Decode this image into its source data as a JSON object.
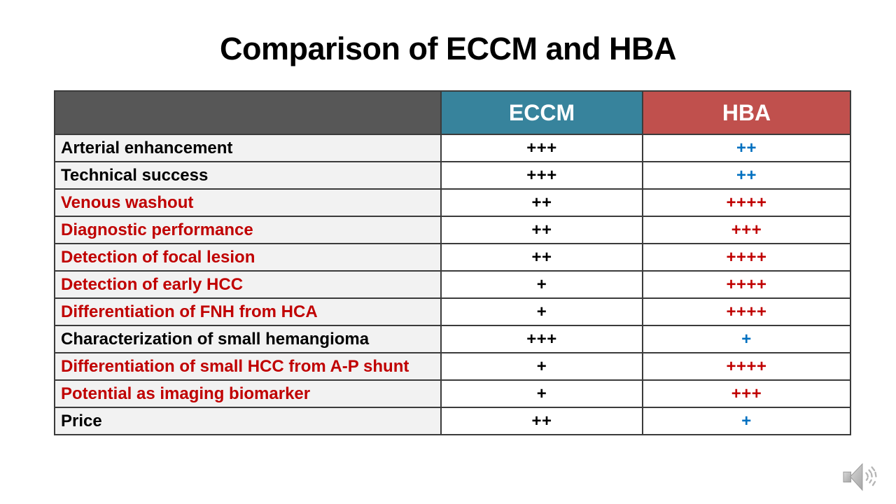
{
  "slide": {
    "title": "Comparison of ECCM and HBA"
  },
  "table": {
    "header": {
      "blank": "",
      "col2": "ECCM",
      "col3": "HBA"
    },
    "rows": [
      {
        "label": "Arterial enhancement",
        "label_color": "#000000",
        "eccm": "+++",
        "eccm_color": "#000000",
        "hba": "++",
        "hba_color": "#0070C0"
      },
      {
        "label": "Technical success",
        "label_color": "#000000",
        "eccm": "+++",
        "eccm_color": "#000000",
        "hba": "++",
        "hba_color": "#0070C0"
      },
      {
        "label": "Venous washout",
        "label_color": "#C00000",
        "eccm": "++",
        "eccm_color": "#000000",
        "hba": "++++",
        "hba_color": "#C00000"
      },
      {
        "label": "Diagnostic performance",
        "label_color": "#C00000",
        "eccm": "++",
        "eccm_color": "#000000",
        "hba": "+++",
        "hba_color": "#C00000"
      },
      {
        "label": "Detection of focal lesion",
        "label_color": "#C00000",
        "eccm": "++",
        "eccm_color": "#000000",
        "hba": "++++",
        "hba_color": "#C00000"
      },
      {
        "label": "Detection of early HCC",
        "label_color": "#C00000",
        "eccm": "+",
        "eccm_color": "#000000",
        "hba": "++++",
        "hba_color": "#C00000"
      },
      {
        "label": "Differentiation of FNH from HCA",
        "label_color": "#C00000",
        "eccm": "+",
        "eccm_color": "#000000",
        "hba": "++++",
        "hba_color": "#C00000"
      },
      {
        "label": "Characterization of small hemangioma",
        "label_color": "#000000",
        "eccm": "+++",
        "eccm_color": "#000000",
        "hba": "+",
        "hba_color": "#0070C0"
      },
      {
        "label": "Differentiation of small HCC from A-P shunt",
        "label_color": "#C00000",
        "eccm": "+",
        "eccm_color": "#000000",
        "hba": "++++",
        "hba_color": "#C00000"
      },
      {
        "label": "Potential as imaging biomarker",
        "label_color": "#C00000",
        "eccm": "+",
        "eccm_color": "#000000",
        "hba": "+++",
        "hba_color": "#C00000"
      },
      {
        "label": "Price",
        "label_color": "#000000",
        "eccm": "++",
        "eccm_color": "#000000",
        "hba": "+",
        "hba_color": "#0070C0"
      }
    ]
  },
  "colors": {
    "header_blank_bg": "#575757",
    "eccm_header_bg": "#37839C",
    "hba_header_bg": "#C0504D",
    "label_cell_bg": "#F2F2F2",
    "value_cell_bg": "#FFFFFF",
    "red_text": "#C00000",
    "blue_text": "#0070C0",
    "black_text": "#000000",
    "border": "#3B3B3B",
    "speaker_gray": "#B5B5B5"
  },
  "icons": {
    "audio_speaker": "speaker-icon"
  }
}
